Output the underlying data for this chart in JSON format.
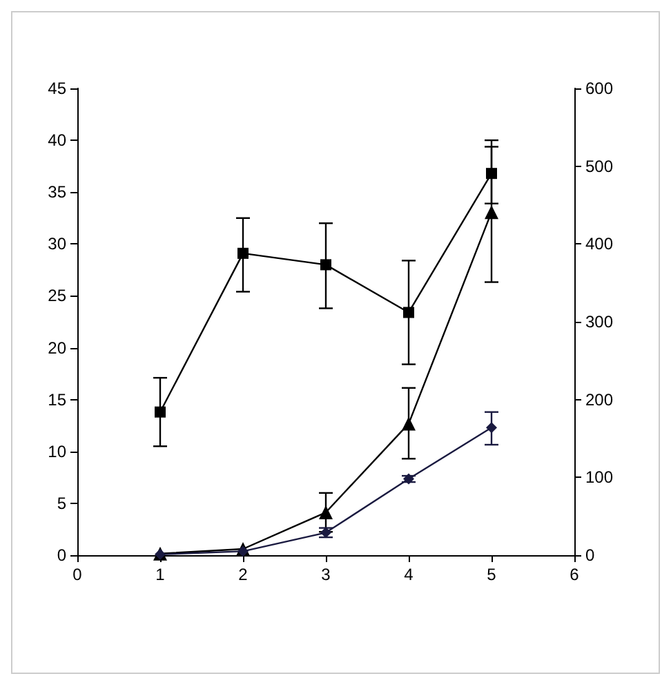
{
  "chart_data": {
    "type": "line",
    "x": [
      1,
      2,
      3,
      4,
      5
    ],
    "xlim": [
      0,
      6
    ],
    "xticks": [
      0,
      1,
      2,
      3,
      4,
      5,
      6
    ],
    "ylim": [
      0,
      45
    ],
    "yticks": [
      0,
      5,
      10,
      15,
      20,
      25,
      30,
      35,
      40,
      45
    ],
    "y2lim": [
      0,
      600
    ],
    "y2ticks": [
      0,
      100,
      200,
      300,
      400,
      500,
      600
    ],
    "grid": false,
    "line_style": "solid",
    "series": [
      {
        "color": "#000000",
        "marker": "square",
        "values": [
          13.8,
          29.1,
          28.0,
          23.4,
          36.8
        ],
        "errors": [
          [
            10.5,
            17.1
          ],
          [
            25.4,
            32.5
          ],
          [
            23.8,
            32.0
          ],
          [
            18.4,
            28.4
          ],
          [
            33.9,
            40.0
          ]
        ]
      },
      {
        "color": "#000000",
        "marker": "triangle",
        "axis": "y2",
        "values": [
          2,
          8,
          55,
          169,
          441
        ],
        "errors": [
          null,
          null,
          [
            30,
            80
          ],
          [
            124,
            215
          ],
          [
            351,
            525
          ]
        ]
      },
      {
        "color": "#1a1a40",
        "marker": "diamond",
        "axis": "y2",
        "values": [
          1,
          5,
          29,
          98,
          164
        ],
        "errors": [
          null,
          null,
          [
            23,
            35
          ],
          [
            94,
            102
          ],
          [
            142,
            184
          ]
        ]
      }
    ]
  }
}
